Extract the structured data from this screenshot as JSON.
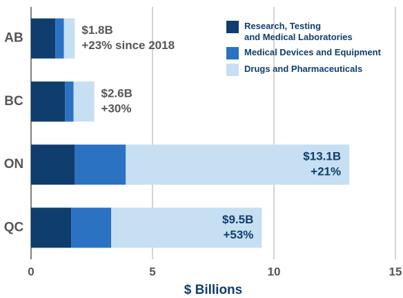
{
  "chart_data": {
    "type": "stacked_barh",
    "x_label": "$ Billions",
    "categories": [
      "AB",
      "BC",
      "ON",
      "QC"
    ],
    "series": [
      {
        "name": "Research, Testing\nand Medical Laboratories",
        "color": "#0f3d6e",
        "values": [
          1.0,
          1.4,
          1.8,
          1.65
        ]
      },
      {
        "name": "Medical Devices and Equipment",
        "color": "#2b72c2",
        "values": [
          0.35,
          0.35,
          2.1,
          1.65
        ]
      },
      {
        "name": "Drugs and Pharmaceuticals",
        "color": "#c6dff2",
        "values": [
          0.45,
          0.85,
          9.2,
          6.2
        ]
      }
    ],
    "annotations": [
      {
        "total": "$1.8B",
        "change": "+23% since 2018"
      },
      {
        "total": "$2.6B",
        "change": "+30%"
      },
      {
        "total": "$13.1B",
        "change": "+21%"
      },
      {
        "total": "$9.5B",
        "change": "+53%"
      }
    ],
    "xlim": [
      0,
      15
    ],
    "xticks": [
      0,
      5,
      10,
      15
    ],
    "grid": true,
    "legend": "upper right"
  }
}
